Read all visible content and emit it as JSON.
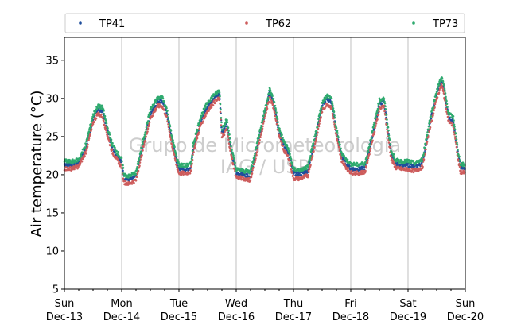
{
  "chart_data": {
    "type": "scatter",
    "ylabel": "Air temperature (°C)",
    "ylim": [
      5,
      38
    ],
    "yticks": [
      5,
      10,
      15,
      20,
      25,
      30,
      35
    ],
    "xlim": [
      "2020-12-13T00:00",
      "2020-12-20T00:00"
    ],
    "xticks": [
      {
        "date": "2020-12-13",
        "label_day": "Sun",
        "label_date": "Dec-13"
      },
      {
        "date": "2020-12-14",
        "label_day": "Mon",
        "label_date": "Dec-14"
      },
      {
        "date": "2020-12-15",
        "label_day": "Tue",
        "label_date": "Dec-15"
      },
      {
        "date": "2020-12-16",
        "label_day": "Wed",
        "label_date": "Dec-16"
      },
      {
        "date": "2020-12-17",
        "label_day": "Thu",
        "label_date": "Dec-17"
      },
      {
        "date": "2020-12-18",
        "label_day": "Fri",
        "label_date": "Dec-18"
      },
      {
        "date": "2020-12-19",
        "label_day": "Sat",
        "label_date": "Dec-19"
      },
      {
        "date": "2020-12-20",
        "label_day": "Sun",
        "label_date": "Dec-20"
      }
    ],
    "grid": "vertical lines at major x ticks",
    "legend_placement": "top, above plot, 3 columns",
    "watermark": [
      "Grupo de Micrometeorologia",
      "IAG / USP"
    ],
    "series": [
      {
        "name": "TP41",
        "color": "#1f4e9c",
        "points": [
          [
            "2020-12-13T00:00",
            21.4
          ],
          [
            "2020-12-13T03:00",
            21.3
          ],
          [
            "2020-12-13T06:00",
            21.6
          ],
          [
            "2020-12-13T09:00",
            23.5
          ],
          [
            "2020-12-13T12:00",
            27.3
          ],
          [
            "2020-12-13T14:00",
            28.6
          ],
          [
            "2020-12-13T16:00",
            28.4
          ],
          [
            "2020-12-13T18:00",
            25.8
          ],
          [
            "2020-12-13T20:00",
            23.6
          ],
          [
            "2020-12-13T22:00",
            22.5
          ],
          [
            "2020-12-14T00:00",
            21.6
          ],
          [
            "2020-12-14T01:00",
            19.6
          ],
          [
            "2020-12-14T03:00",
            19.3
          ],
          [
            "2020-12-14T06:00",
            19.8
          ],
          [
            "2020-12-14T09:00",
            24.0
          ],
          [
            "2020-12-14T12:00",
            28.0
          ],
          [
            "2020-12-14T15:00",
            29.6
          ],
          [
            "2020-12-14T17:00",
            29.7
          ],
          [
            "2020-12-14T19:00",
            28.0
          ],
          [
            "2020-12-14T21:00",
            24.5
          ],
          [
            "2020-12-14T23:00",
            21.8
          ],
          [
            "2020-12-15T00:00",
            20.8
          ],
          [
            "2020-12-15T03:00",
            20.7
          ],
          [
            "2020-12-15T05:00",
            20.9
          ],
          [
            "2020-12-15T06:00",
            23.5
          ],
          [
            "2020-12-15T09:00",
            27.0
          ],
          [
            "2020-12-15T12:00",
            29.0
          ],
          [
            "2020-12-15T15:00",
            30.2
          ],
          [
            "2020-12-15T17:00",
            30.6
          ],
          [
            "2020-12-15T18:00",
            25.5
          ],
          [
            "2020-12-15T20:00",
            26.8
          ],
          [
            "2020-12-15T22:00",
            23.0
          ],
          [
            "2020-12-16T00:00",
            20.2
          ],
          [
            "2020-12-16T03:00",
            20.0
          ],
          [
            "2020-12-16T06:00",
            19.9
          ],
          [
            "2020-12-16T09:00",
            24.0
          ],
          [
            "2020-12-16T12:00",
            28.0
          ],
          [
            "2020-12-16T14:00",
            30.8
          ],
          [
            "2020-12-16T16:00",
            29.0
          ],
          [
            "2020-12-16T18:00",
            25.5
          ],
          [
            "2020-12-16T20:00",
            23.8
          ],
          [
            "2020-12-16T22:00",
            22.8
          ],
          [
            "2020-12-17T00:00",
            20.2
          ],
          [
            "2020-12-17T03:00",
            20.1
          ],
          [
            "2020-12-17T06:00",
            20.5
          ],
          [
            "2020-12-17T09:00",
            24.5
          ],
          [
            "2020-12-17T12:00",
            29.0
          ],
          [
            "2020-12-17T14:00",
            30.0
          ],
          [
            "2020-12-17T16:00",
            29.5
          ],
          [
            "2020-12-17T18:00",
            25.5
          ],
          [
            "2020-12-17T20:00",
            22.5
          ],
          [
            "2020-12-17T22:00",
            21.5
          ],
          [
            "2020-12-18T00:00",
            20.8
          ],
          [
            "2020-12-18T03:00",
            20.7
          ],
          [
            "2020-12-18T06:00",
            20.9
          ],
          [
            "2020-12-18T09:00",
            25.0
          ],
          [
            "2020-12-18T12:00",
            29.3
          ],
          [
            "2020-12-18T14:00",
            29.6
          ],
          [
            "2020-12-18T15:00",
            27.0
          ],
          [
            "2020-12-18T17:00",
            22.5
          ],
          [
            "2020-12-18T19:00",
            21.4
          ],
          [
            "2020-12-18T22:00",
            21.2
          ],
          [
            "2020-12-19T00:00",
            21.3
          ],
          [
            "2020-12-19T03:00",
            21.0
          ],
          [
            "2020-12-19T06:00",
            21.5
          ],
          [
            "2020-12-19T09:00",
            26.5
          ],
          [
            "2020-12-19T12:00",
            30.5
          ],
          [
            "2020-12-19T14:00",
            32.5
          ],
          [
            "2020-12-19T15:00",
            31.2
          ],
          [
            "2020-12-19T17:00",
            27.5
          ],
          [
            "2020-12-19T19:00",
            27.0
          ],
          [
            "2020-12-19T21:00",
            22.5
          ],
          [
            "2020-12-19T22:00",
            21.0
          ],
          [
            "2020-12-20T00:00",
            20.7
          ]
        ]
      },
      {
        "name": "TP62",
        "color": "#cd5c5c",
        "points": [
          [
            "2020-12-13T00:00",
            20.8
          ],
          [
            "2020-12-13T03:00",
            20.8
          ],
          [
            "2020-12-13T06:00",
            21.1
          ],
          [
            "2020-12-13T09:00",
            23.0
          ],
          [
            "2020-12-13T12:00",
            26.8
          ],
          [
            "2020-12-13T14:00",
            28.0
          ],
          [
            "2020-12-13T16:00",
            27.6
          ],
          [
            "2020-12-13T18:00",
            25.2
          ],
          [
            "2020-12-13T20:00",
            23.0
          ],
          [
            "2020-12-13T22:00",
            22.0
          ],
          [
            "2020-12-14T00:00",
            21.0
          ],
          [
            "2020-12-14T01:00",
            19.0
          ],
          [
            "2020-12-14T03:00",
            18.8
          ],
          [
            "2020-12-14T06:00",
            19.3
          ],
          [
            "2020-12-14T09:00",
            23.5
          ],
          [
            "2020-12-14T12:00",
            27.4
          ],
          [
            "2020-12-14T15:00",
            29.0
          ],
          [
            "2020-12-14T17:00",
            29.0
          ],
          [
            "2020-12-14T19:00",
            27.4
          ],
          [
            "2020-12-14T21:00",
            24.0
          ],
          [
            "2020-12-14T23:00",
            21.2
          ],
          [
            "2020-12-15T00:00",
            20.2
          ],
          [
            "2020-12-15T03:00",
            20.2
          ],
          [
            "2020-12-15T05:00",
            20.4
          ],
          [
            "2020-12-15T06:00",
            23.0
          ],
          [
            "2020-12-15T09:00",
            26.5
          ],
          [
            "2020-12-15T12:00",
            28.4
          ],
          [
            "2020-12-15T15:00",
            29.6
          ],
          [
            "2020-12-15T17:00",
            30.0
          ],
          [
            "2020-12-15T18:00",
            24.8
          ],
          [
            "2020-12-15T20:00",
            26.0
          ],
          [
            "2020-12-15T22:00",
            22.4
          ],
          [
            "2020-12-16T00:00",
            19.7
          ],
          [
            "2020-12-16T03:00",
            19.5
          ],
          [
            "2020-12-16T06:00",
            19.3
          ],
          [
            "2020-12-16T09:00",
            23.5
          ],
          [
            "2020-12-16T12:00",
            27.5
          ],
          [
            "2020-12-16T14:00",
            30.2
          ],
          [
            "2020-12-16T16:00",
            28.4
          ],
          [
            "2020-12-16T18:00",
            25.0
          ],
          [
            "2020-12-16T20:00",
            23.2
          ],
          [
            "2020-12-16T22:00",
            22.2
          ],
          [
            "2020-12-17T00:00",
            19.5
          ],
          [
            "2020-12-17T03:00",
            19.5
          ],
          [
            "2020-12-17T06:00",
            19.9
          ],
          [
            "2020-12-17T09:00",
            24.0
          ],
          [
            "2020-12-17T12:00",
            28.4
          ],
          [
            "2020-12-17T14:00",
            29.3
          ],
          [
            "2020-12-17T16:00",
            28.8
          ],
          [
            "2020-12-17T18:00",
            25.0
          ],
          [
            "2020-12-17T20:00",
            22.0
          ],
          [
            "2020-12-17T22:00",
            21.0
          ],
          [
            "2020-12-18T00:00",
            20.3
          ],
          [
            "2020-12-18T03:00",
            20.2
          ],
          [
            "2020-12-18T06:00",
            20.4
          ],
          [
            "2020-12-18T09:00",
            24.5
          ],
          [
            "2020-12-18T12:00",
            28.6
          ],
          [
            "2020-12-18T14:00",
            29.0
          ],
          [
            "2020-12-18T15:00",
            26.4
          ],
          [
            "2020-12-18T17:00",
            22.0
          ],
          [
            "2020-12-18T19:00",
            20.9
          ],
          [
            "2020-12-18T22:00",
            20.7
          ],
          [
            "2020-12-19T00:00",
            20.7
          ],
          [
            "2020-12-19T03:00",
            20.5
          ],
          [
            "2020-12-19T06:00",
            21.0
          ],
          [
            "2020-12-19T09:00",
            26.0
          ],
          [
            "2020-12-19T12:00",
            30.0
          ],
          [
            "2020-12-19T14:00",
            31.8
          ],
          [
            "2020-12-19T15:00",
            30.6
          ],
          [
            "2020-12-19T17:00",
            27.0
          ],
          [
            "2020-12-19T19:00",
            26.4
          ],
          [
            "2020-12-19T21:00",
            22.0
          ],
          [
            "2020-12-19T22:00",
            20.4
          ],
          [
            "2020-12-20T00:00",
            20.2
          ]
        ]
      },
      {
        "name": "TP73",
        "color": "#2eaa6e",
        "points": [
          [
            "2020-12-13T00:00",
            21.8
          ],
          [
            "2020-12-13T03:00",
            21.7
          ],
          [
            "2020-12-13T06:00",
            22.0
          ],
          [
            "2020-12-13T09:00",
            24.0
          ],
          [
            "2020-12-13T12:00",
            27.8
          ],
          [
            "2020-12-13T14:00",
            29.0
          ],
          [
            "2020-12-13T16:00",
            28.8
          ],
          [
            "2020-12-13T18:00",
            26.2
          ],
          [
            "2020-12-13T20:00",
            24.0
          ],
          [
            "2020-12-13T22:00",
            23.0
          ],
          [
            "2020-12-14T00:00",
            22.0
          ],
          [
            "2020-12-14T01:00",
            20.0
          ],
          [
            "2020-12-14T03:00",
            19.8
          ],
          [
            "2020-12-14T06:00",
            20.3
          ],
          [
            "2020-12-14T09:00",
            24.5
          ],
          [
            "2020-12-14T12:00",
            28.5
          ],
          [
            "2020-12-14T15:00",
            30.0
          ],
          [
            "2020-12-14T17:00",
            30.2
          ],
          [
            "2020-12-14T19:00",
            28.5
          ],
          [
            "2020-12-14T21:00",
            25.0
          ],
          [
            "2020-12-14T23:00",
            22.3
          ],
          [
            "2020-12-15T00:00",
            21.3
          ],
          [
            "2020-12-15T03:00",
            21.2
          ],
          [
            "2020-12-15T05:00",
            21.4
          ],
          [
            "2020-12-15T06:00",
            24.0
          ],
          [
            "2020-12-15T09:00",
            27.5
          ],
          [
            "2020-12-15T12:00",
            29.5
          ],
          [
            "2020-12-15T15:00",
            30.6
          ],
          [
            "2020-12-15T17:00",
            31.0
          ],
          [
            "2020-12-15T18:00",
            26.0
          ],
          [
            "2020-12-15T20:00",
            27.3
          ],
          [
            "2020-12-15T22:00",
            23.5
          ],
          [
            "2020-12-16T00:00",
            20.7
          ],
          [
            "2020-12-16T03:00",
            20.5
          ],
          [
            "2020-12-16T06:00",
            20.4
          ],
          [
            "2020-12-16T09:00",
            24.5
          ],
          [
            "2020-12-16T12:00",
            28.5
          ],
          [
            "2020-12-16T14:00",
            31.2
          ],
          [
            "2020-12-16T16:00",
            29.5
          ],
          [
            "2020-12-16T18:00",
            26.0
          ],
          [
            "2020-12-16T20:00",
            24.3
          ],
          [
            "2020-12-16T22:00",
            23.3
          ],
          [
            "2020-12-17T00:00",
            20.7
          ],
          [
            "2020-12-17T03:00",
            20.6
          ],
          [
            "2020-12-17T06:00",
            21.0
          ],
          [
            "2020-12-17T09:00",
            25.0
          ],
          [
            "2020-12-17T12:00",
            29.5
          ],
          [
            "2020-12-17T14:00",
            30.4
          ],
          [
            "2020-12-17T16:00",
            30.0
          ],
          [
            "2020-12-17T18:00",
            26.0
          ],
          [
            "2020-12-17T20:00",
            23.0
          ],
          [
            "2020-12-17T22:00",
            22.0
          ],
          [
            "2020-12-18T00:00",
            21.4
          ],
          [
            "2020-12-18T03:00",
            21.3
          ],
          [
            "2020-12-18T06:00",
            21.5
          ],
          [
            "2020-12-18T09:00",
            25.5
          ],
          [
            "2020-12-18T12:00",
            29.8
          ],
          [
            "2020-12-18T14:00",
            30.0
          ],
          [
            "2020-12-18T15:00",
            27.6
          ],
          [
            "2020-12-18T17:00",
            23.0
          ],
          [
            "2020-12-18T19:00",
            21.9
          ],
          [
            "2020-12-18T22:00",
            21.7
          ],
          [
            "2020-12-19T00:00",
            21.8
          ],
          [
            "2020-12-19T03:00",
            21.5
          ],
          [
            "2020-12-19T06:00",
            22.0
          ],
          [
            "2020-12-19T09:00",
            27.0
          ],
          [
            "2020-12-19T12:00",
            31.0
          ],
          [
            "2020-12-19T14:00",
            32.8
          ],
          [
            "2020-12-19T15:00",
            31.8
          ],
          [
            "2020-12-19T17:00",
            28.0
          ],
          [
            "2020-12-19T19:00",
            27.5
          ],
          [
            "2020-12-19T21:00",
            23.0
          ],
          [
            "2020-12-19T22:00",
            21.5
          ],
          [
            "2020-12-20T00:00",
            21.2
          ]
        ]
      }
    ]
  }
}
